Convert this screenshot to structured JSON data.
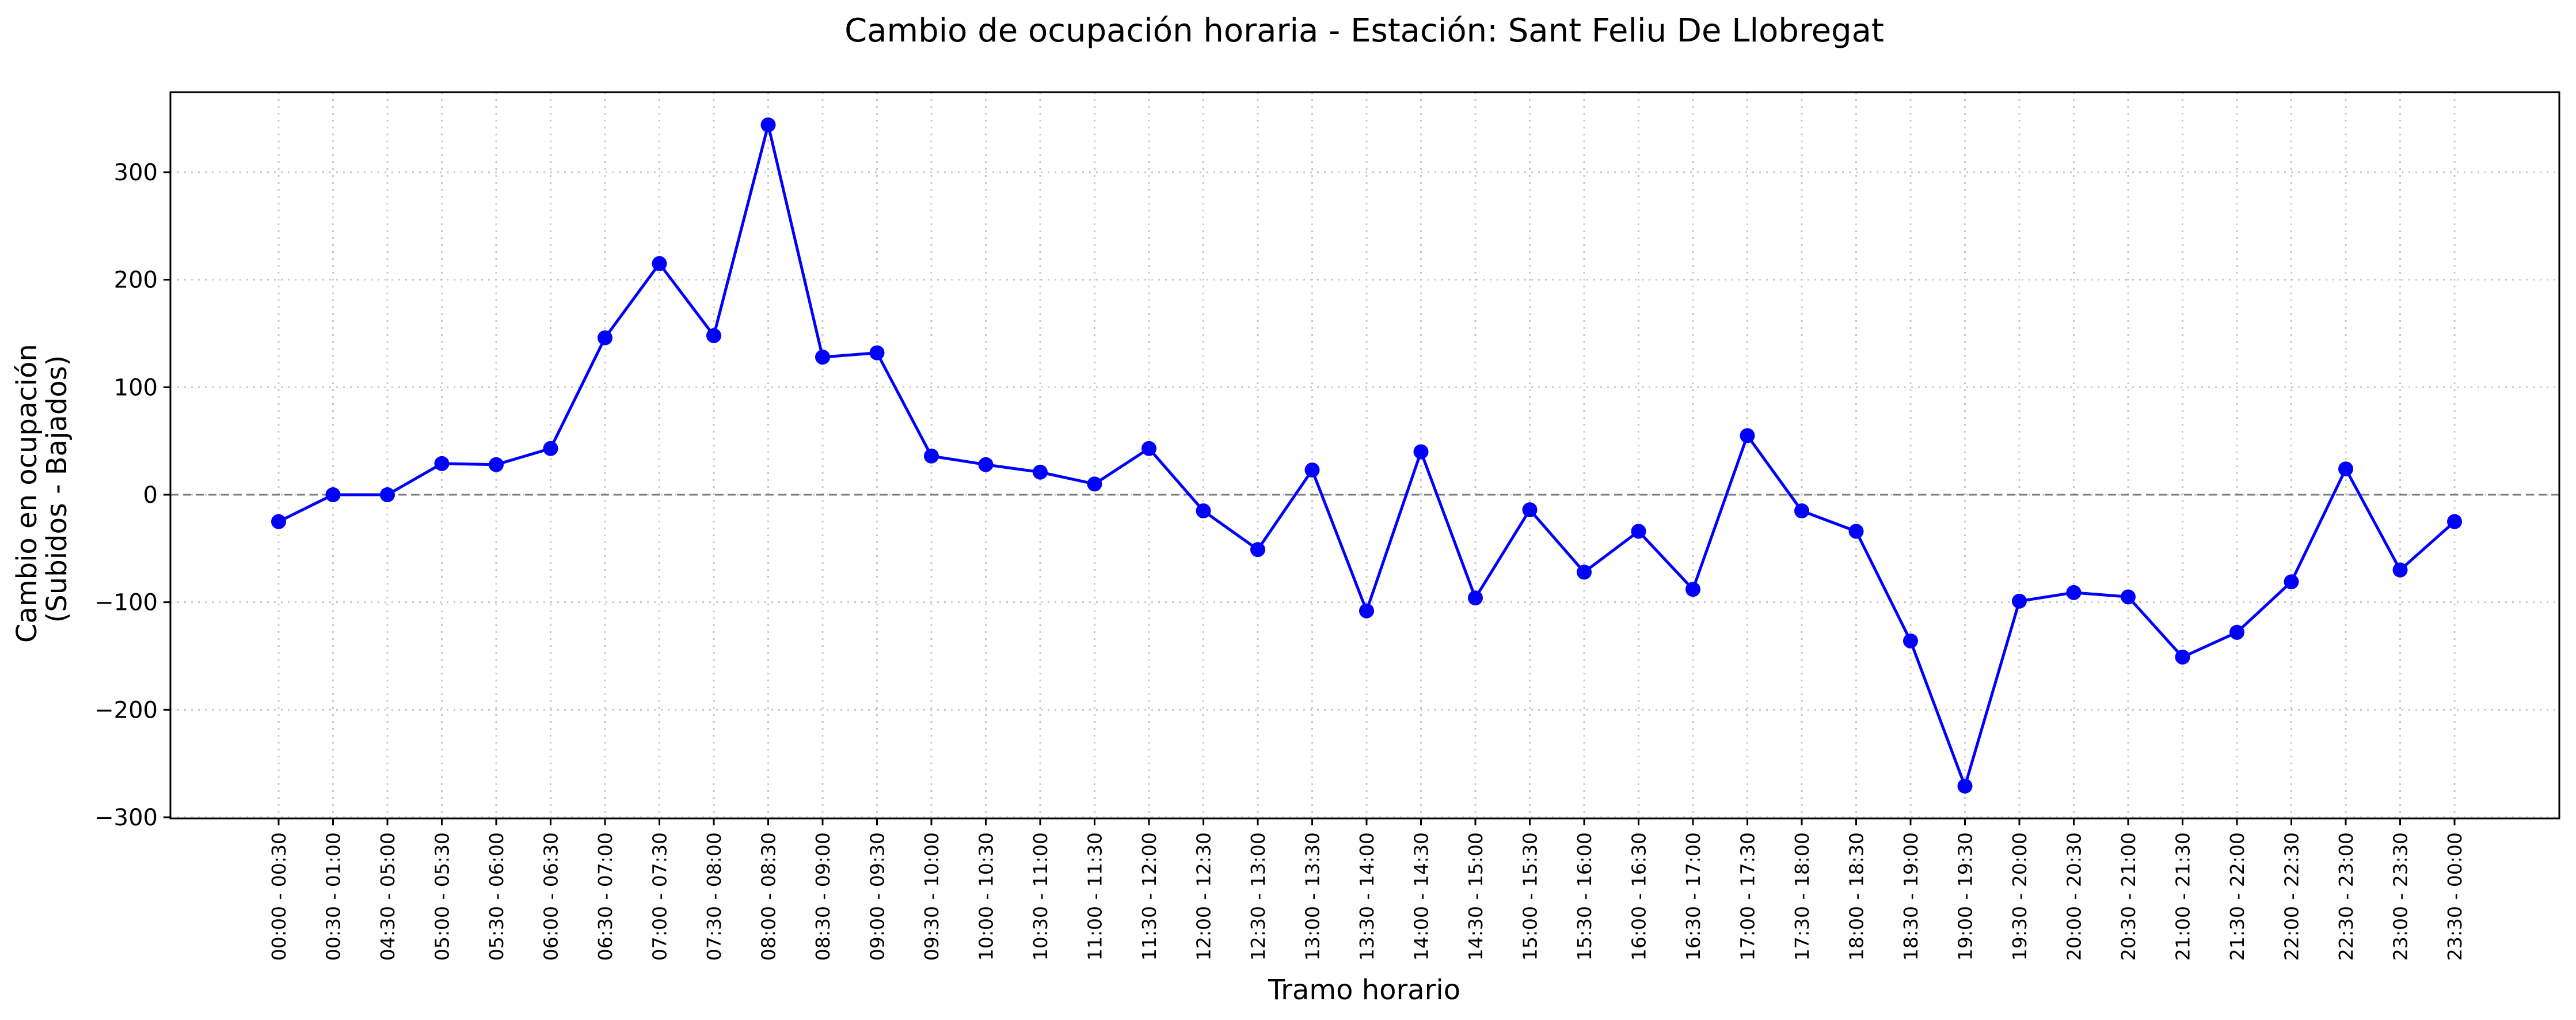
{
  "colors": {
    "series": "#0000ff",
    "zero_line": "#808080",
    "grid": "#c8c8c8"
  },
  "chart_data": {
    "type": "line",
    "title": "Cambio de ocupación horaria - Estación: Sant Feliu De Llobregat",
    "xlabel": "Tramo horario",
    "ylabel_lines": [
      "Cambio en ocupación",
      "(Subidos - Bajados)"
    ],
    "ylim": [
      -300,
      370
    ],
    "yticks": [
      300,
      200,
      100,
      0,
      -100,
      -200,
      -300
    ],
    "ytick_labels": [
      "300",
      "200",
      "100",
      "0",
      "−100",
      "−200",
      "−300"
    ],
    "grid": true,
    "reference_line": 0,
    "categories": [
      "00:00 - 00:30",
      "00:30 - 01:00",
      "04:30 - 05:00",
      "05:00 - 05:30",
      "05:30 - 06:00",
      "06:00 - 06:30",
      "06:30 - 07:00",
      "07:00 - 07:30",
      "07:30 - 08:00",
      "08:00 - 08:30",
      "08:30 - 09:00",
      "09:00 - 09:30",
      "09:30 - 10:00",
      "10:00 - 10:30",
      "10:30 - 11:00",
      "11:00 - 11:30",
      "11:30 - 12:00",
      "12:00 - 12:30",
      "12:30 - 13:00",
      "13:00 - 13:30",
      "13:30 - 14:00",
      "14:00 - 14:30",
      "14:30 - 15:00",
      "15:00 - 15:30",
      "15:30 - 16:00",
      "16:00 - 16:30",
      "16:30 - 17:00",
      "17:00 - 17:30",
      "17:30 - 18:00",
      "18:00 - 18:30",
      "18:30 - 19:00",
      "19:00 - 19:30",
      "19:30 - 20:00",
      "20:00 - 20:30",
      "20:30 - 21:00",
      "21:00 - 21:30",
      "21:30 - 22:00",
      "22:00 - 22:30",
      "22:30 - 23:00",
      "23:00 - 23:30",
      "23:30 - 00:00"
    ],
    "values": [
      -25,
      0,
      0,
      29,
      28,
      43,
      146,
      215,
      148,
      344,
      128,
      132,
      36,
      28,
      21,
      10,
      43,
      -15,
      -51,
      23,
      -108,
      40,
      -96,
      -14,
      -72,
      -34,
      -88,
      55,
      -15,
      -34,
      -136,
      -271,
      -99,
      -91,
      -95,
      -151,
      -128,
      -81,
      24,
      -70,
      -25
    ]
  }
}
